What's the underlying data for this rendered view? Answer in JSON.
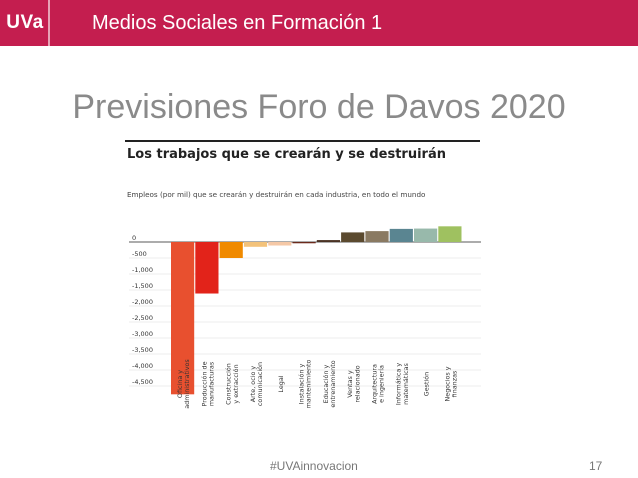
{
  "header": {
    "logo_text": "UVa",
    "course_title": "Medios Sociales en Formación 1",
    "bg_color": "#c41e4f"
  },
  "slide": {
    "title": "Previsiones Foro de Davos 2020",
    "footer_tag": "#UVAinnovacion",
    "slide_number": "17"
  },
  "chart_data": {
    "type": "bar",
    "title": "Los trabajos que se crearán y se destruirán",
    "subtitle": "Empleos (por mil) que se crearán y destruirán en cada industria, en todo el mundo",
    "ylim": [
      -4900,
      300
    ],
    "yticks": [
      0,
      -500,
      -1000,
      -1500,
      -2000,
      -2500,
      -3000,
      -3500,
      -4000,
      -4500
    ],
    "ytick_labels": [
      "0",
      "-500",
      "-1,000",
      "-1,500",
      "-2,000",
      "-2,500",
      "-3,000",
      "-3,500",
      "-4,000",
      "-4,500"
    ],
    "categories": [
      "Oficina y administrativos",
      "Producción de manufacturas",
      "Construcción y extracción",
      "Arte, ocio y comunicación",
      "Legal",
      "Instalación y mantenimiento",
      "Educación y entrenamiento",
      "Ventas y relacionado",
      "Arquitectura e ingeniería",
      "Informática y matemáticas",
      "Gestión",
      "Negocios y finanzas"
    ],
    "values": [
      -4760,
      -1610,
      -500,
      -150,
      -110,
      -40,
      60,
      300,
      340,
      410,
      420,
      490
    ],
    "colors": [
      "#e8502f",
      "#e2231a",
      "#f08a00",
      "#f3c27a",
      "#f5c8a6",
      "#6b2a1c",
      "#4a3224",
      "#5b4a2f",
      "#8a7a62",
      "#5a8591",
      "#98b9ab",
      "#9fc160"
    ]
  }
}
